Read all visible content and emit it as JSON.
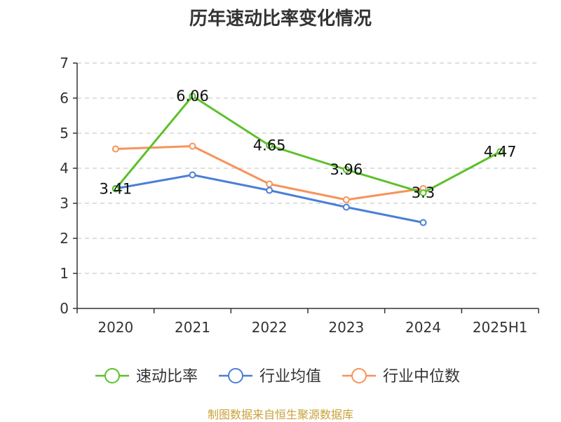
{
  "chart_data": {
    "type": "line",
    "title": "历年速动比率变化情况",
    "categories": [
      "2020",
      "2021",
      "2022",
      "2023",
      "2024",
      "2025H1"
    ],
    "ylim": [
      0,
      7
    ],
    "yticks": [
      "0",
      "1",
      "2",
      "3",
      "4",
      "5",
      "6",
      "7"
    ],
    "grid": true,
    "legend_position": "bottom",
    "series": [
      {
        "name": "速动比率",
        "color": "#5bc12a",
        "values": [
          3.41,
          6.06,
          4.65,
          3.96,
          3.3,
          4.47
        ],
        "labels": [
          "3.41",
          "6.06",
          "4.65",
          "3.96",
          "3.3",
          "4.47"
        ]
      },
      {
        "name": "行业均值",
        "color": "#4a7fd6",
        "values": [
          3.42,
          3.81,
          3.37,
          2.89,
          2.45,
          null
        ]
      },
      {
        "name": "行业中位数",
        "color": "#f7935a",
        "values": [
          4.55,
          4.63,
          3.55,
          3.1,
          3.42,
          null
        ]
      }
    ]
  },
  "source": "制图数据来自恒生聚源数据库"
}
